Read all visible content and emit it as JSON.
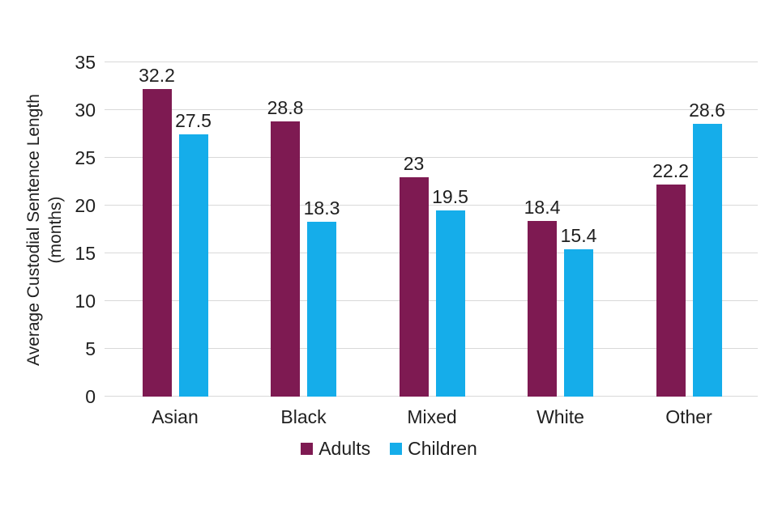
{
  "figure": {
    "background": "#ffffff",
    "text_color": "#1f1f1f",
    "grid_color": "#d9d9d9"
  },
  "chart_data": {
    "type": "bar",
    "title": "",
    "categories": [
      "Asian",
      "Black",
      "Mixed",
      "White",
      "Other"
    ],
    "series": [
      {
        "name": "Adults",
        "color": "#7e1a52",
        "values": [
          32.2,
          28.8,
          23,
          18.4,
          22.2
        ],
        "labels": [
          "32.2",
          "28.8",
          "23",
          "18.4",
          "22.2"
        ]
      },
      {
        "name": "Children",
        "color": "#15adea",
        "values": [
          27.5,
          18.3,
          19.5,
          15.4,
          28.6
        ],
        "labels": [
          "27.5",
          "18.3",
          "19.5",
          "15.4",
          "28.6"
        ]
      }
    ],
    "xlabel": "",
    "ylabel_line1": "Average Custodial Sentence Length",
    "ylabel_line2": "(months)",
    "ylim": [
      0,
      35
    ],
    "yticks": [
      0,
      5,
      10,
      15,
      20,
      25,
      30,
      35
    ],
    "grid": "horizontal",
    "legend_position": "bottom"
  }
}
